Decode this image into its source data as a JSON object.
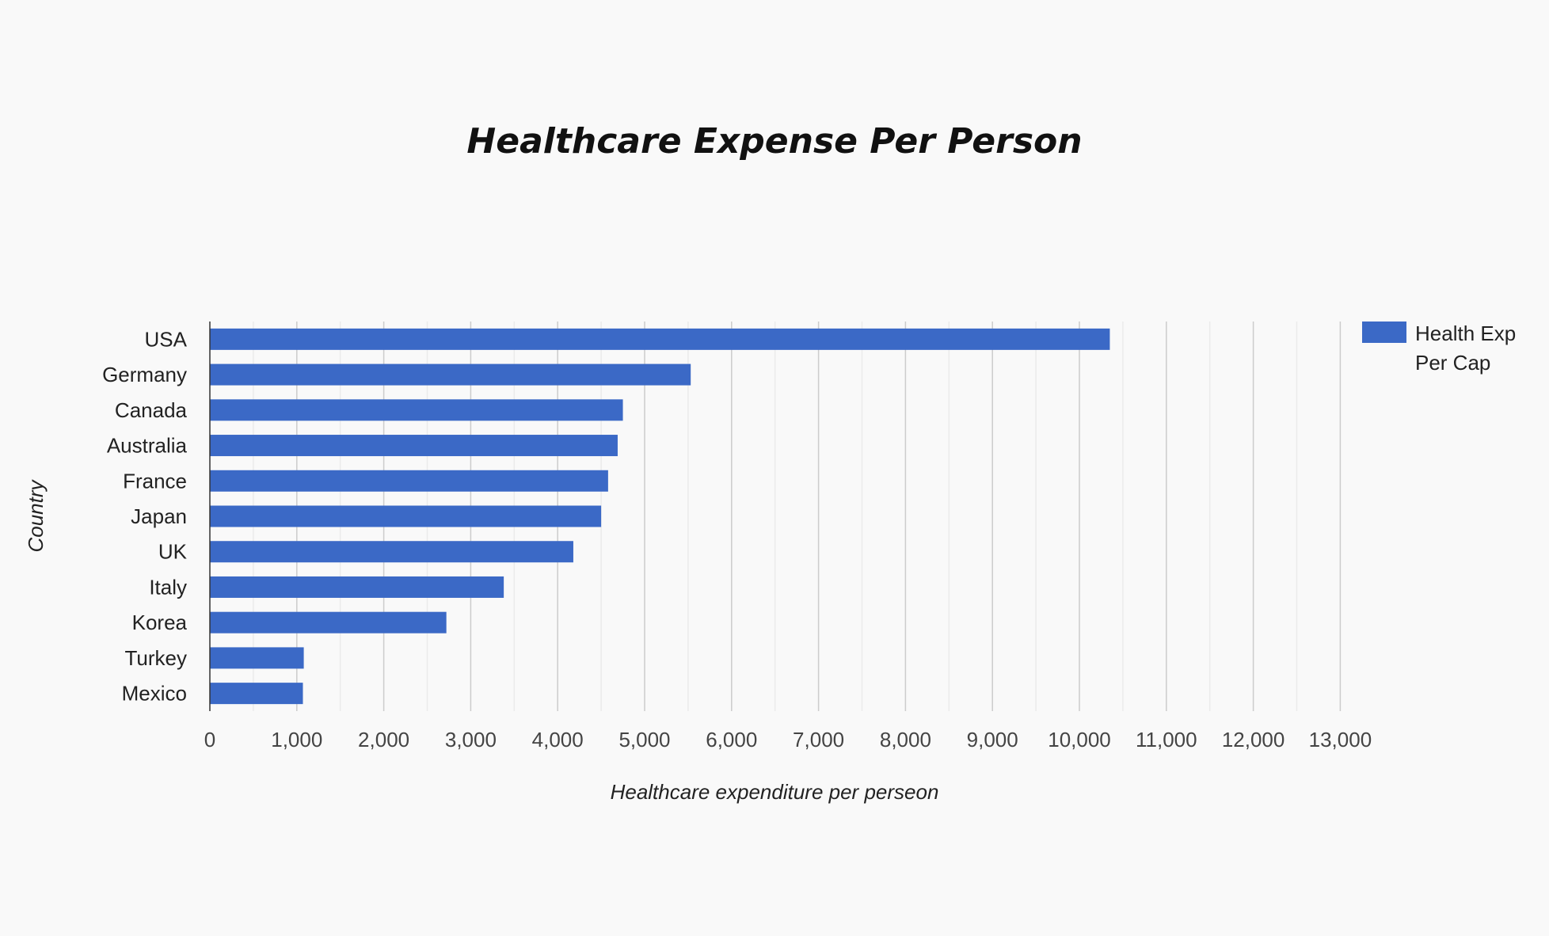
{
  "chart_data": {
    "type": "bar",
    "orientation": "horizontal",
    "title": "Healthcare Expense Per Person",
    "xlabel": "Healthcare expenditure per perseon",
    "ylabel": "Country",
    "categories": [
      "USA",
      "Germany",
      "Canada",
      "Australia",
      "France",
      "Japan",
      "UK",
      "Italy",
      "Korea",
      "Turkey",
      "Mexico"
    ],
    "series": [
      {
        "name": "Health Exp Per Cap",
        "legend_lines": [
          "Health Exp",
          "Per Cap"
        ],
        "values": [
          10350,
          5530,
          4750,
          4690,
          4580,
          4500,
          4180,
          3380,
          2720,
          1080,
          1070
        ],
        "color": "#3b69c6"
      }
    ],
    "xlim": [
      0,
      13000
    ],
    "xticks": [
      0,
      1000,
      2000,
      3000,
      4000,
      5000,
      6000,
      7000,
      8000,
      9000,
      10000,
      11000,
      12000,
      13000
    ],
    "xtick_labels": [
      "0",
      "1,000",
      "2,000",
      "3,000",
      "4,000",
      "5,000",
      "6,000",
      "7,000",
      "8,000",
      "9,000",
      "10,000",
      "11,000",
      "12,000",
      "13,000"
    ],
    "grid": true,
    "legend_position": "right"
  }
}
